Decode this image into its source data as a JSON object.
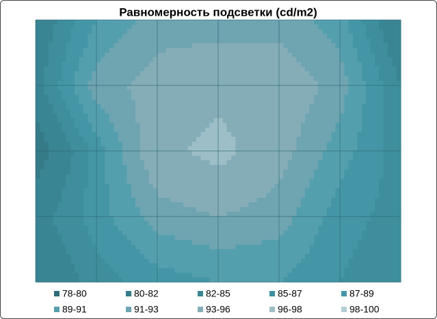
{
  "chart_data": {
    "type": "contour",
    "title": "Равномерность подсветки (cd/m2)",
    "z": [
      [
        83,
        89,
        92,
        92,
        92,
        90,
        82
      ],
      [
        84,
        92,
        94,
        95,
        95,
        92,
        85
      ],
      [
        80,
        88,
        95,
        97,
        94,
        90,
        86
      ],
      [
        84,
        88,
        92,
        93,
        92,
        88,
        86
      ],
      [
        82,
        86,
        88,
        89,
        89,
        87,
        85
      ]
    ],
    "bands": [
      {
        "label": "78-80",
        "from": 78,
        "to": 80,
        "color": "#2f6c78"
      },
      {
        "label": "80-82",
        "from": 80,
        "to": 82,
        "color": "#357a87"
      },
      {
        "label": "82-85",
        "from": 82,
        "to": 85,
        "color": "#3a8593"
      },
      {
        "label": "85-87",
        "from": 85,
        "to": 87,
        "color": "#3e8e9d"
      },
      {
        "label": "87-89",
        "from": 87,
        "to": 89,
        "color": "#4496a6"
      },
      {
        "label": "89-91",
        "from": 89,
        "to": 91,
        "color": "#549fae"
      },
      {
        "label": "91-93",
        "from": 91,
        "to": 93,
        "color": "#6fa4b1"
      },
      {
        "label": "93-96",
        "from": 93,
        "to": 96,
        "color": "#84adb8"
      },
      {
        "label": "96-98",
        "from": 96,
        "to": 98,
        "color": "#9dbec6"
      },
      {
        "label": "98-100",
        "from": 98,
        "to": 100,
        "color": "#b4ced4"
      }
    ]
  }
}
